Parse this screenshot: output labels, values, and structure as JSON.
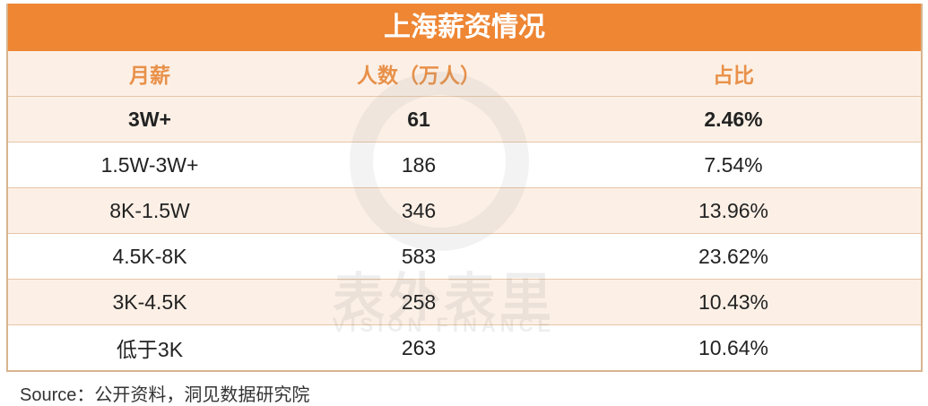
{
  "title": "上海薪资情况",
  "headers": [
    "月薪",
    "人数（万人）",
    "占比"
  ],
  "rows": [
    [
      "3W+",
      "61",
      "2.46%"
    ],
    [
      "1.5W-3W+",
      "186",
      "7.54%"
    ],
    [
      "8K-1.5W",
      "346",
      "13.96%"
    ],
    [
      "4.5K-8K",
      "583",
      "23.62%"
    ],
    [
      "3K-4.5K",
      "258",
      "10.43%"
    ],
    [
      "低于3K",
      "263",
      "10.64%"
    ]
  ],
  "source": "Source：公开资料，洞见数据研究院",
  "watermark": {
    "cn": "表外表里",
    "en": "VISION FINANCE"
  },
  "colors": {
    "title_bg": "#EE8634",
    "header_text": "#E8914A",
    "stripe": "#FCF0E6",
    "border": "#D9B48E"
  },
  "chart_data": {
    "type": "table",
    "title": "上海薪资情况",
    "columns": [
      "月薪",
      "人数（万人）",
      "占比"
    ],
    "rows": [
      [
        "3W+",
        61,
        "2.46%"
      ],
      [
        "1.5W-3W+",
        186,
        "7.54%"
      ],
      [
        "8K-1.5W",
        346,
        "13.96%"
      ],
      [
        "4.5K-8K",
        583,
        "23.62%"
      ],
      [
        "3K-4.5K",
        258,
        "10.43%"
      ],
      [
        "低于3K",
        263,
        "10.64%"
      ]
    ]
  }
}
